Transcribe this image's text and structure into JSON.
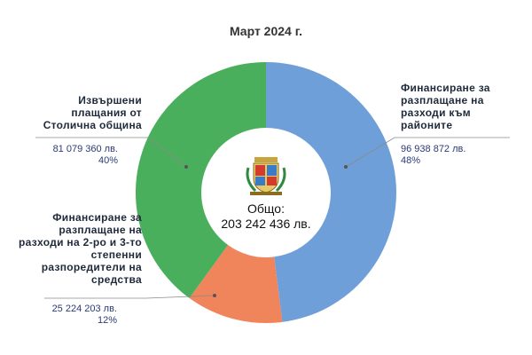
{
  "chart_data": {
    "type": "donut",
    "title": "Март 2024 г.",
    "center_label": "Общо:",
    "center_value": "203 242 436 лв.",
    "categories": [
      "Финансиране за разплащане на разходи към районите",
      "Финансиране за разплащане на разходи на 2-ро и 3-то степенни разпоредители на средства",
      "Извършени плащания от Столична община"
    ],
    "values": [
      48,
      12,
      40
    ],
    "value_labels": [
      "48%",
      "12%",
      "40%"
    ],
    "amount_labels": [
      "96 938 872 лв.",
      "25 224 203 лв.",
      "81 079 360 лв."
    ],
    "colors": [
      "#6f9fd8",
      "#f0845a",
      "#4aaf5d"
    ]
  }
}
